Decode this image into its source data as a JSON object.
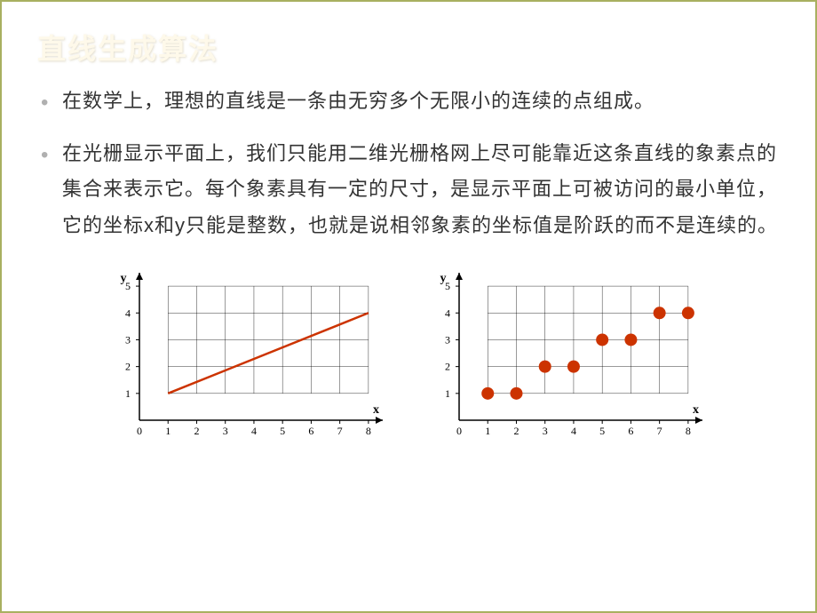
{
  "title": "直线生成算法",
  "bullets": [
    "在数学上，理想的直线是一条由无穷多个无限小的连续的点组成。",
    "在光栅显示平面上，我们只能用二维光栅格网上尽可能靠近这条直线的象素点的集合来表示它。每个象素具有一定的尺寸，是显示平面上可被访问的最小单位，它的坐标x和y只能是整数，也就是说相邻象素的坐标值是阶跃的而不是连续的。"
  ],
  "chart_left": {
    "type": "line",
    "x_label": "x",
    "y_label": "y",
    "x_ticks": [
      0,
      1,
      2,
      3,
      4,
      5,
      6,
      7,
      8
    ],
    "y_ticks": [
      0,
      1,
      2,
      3,
      4,
      5
    ],
    "x_tick_labels": [
      "0",
      "1",
      "2",
      "3",
      "4",
      "5",
      "6",
      "7",
      "8"
    ],
    "y_tick_labels": [
      "",
      "1",
      "2",
      "3",
      "4",
      "5"
    ],
    "xlim": [
      0,
      8.5
    ],
    "ylim": [
      0,
      5.5
    ],
    "grid_xmin": 1,
    "grid_xmax": 8,
    "grid_ymin": 1,
    "grid_ymax": 5,
    "line_points": [
      [
        1,
        1
      ],
      [
        8,
        4
      ]
    ],
    "line_color": "#cc3300",
    "line_width": 2.5,
    "axis_color": "#000000",
    "grid_color": "#000000",
    "grid_width": 0.4,
    "background_color": "#ffffff",
    "axis_label_fontsize": 14,
    "tick_fontsize": 12
  },
  "chart_right": {
    "type": "scatter",
    "x_label": "x",
    "y_label": "y",
    "x_ticks": [
      0,
      1,
      2,
      3,
      4,
      5,
      6,
      7,
      8
    ],
    "y_ticks": [
      0,
      1,
      2,
      3,
      4,
      5
    ],
    "x_tick_labels": [
      "0",
      "1",
      "2",
      "3",
      "4",
      "5",
      "6",
      "7",
      "8"
    ],
    "y_tick_labels": [
      "",
      "1",
      "2",
      "3",
      "4",
      "5"
    ],
    "xlim": [
      0,
      8.5
    ],
    "ylim": [
      0,
      5.5
    ],
    "grid_xmin": 1,
    "grid_xmax": 8,
    "grid_ymin": 1,
    "grid_ymax": 5,
    "points": [
      [
        1,
        1
      ],
      [
        2,
        1
      ],
      [
        3,
        2
      ],
      [
        4,
        2
      ],
      [
        5,
        3
      ],
      [
        6,
        3
      ],
      [
        7,
        4
      ],
      [
        8,
        4
      ]
    ],
    "marker_color": "#cc3300",
    "marker_radius": 7,
    "axis_color": "#000000",
    "grid_color": "#000000",
    "grid_width": 0.4,
    "background_color": "#ffffff",
    "axis_label_fontsize": 14,
    "tick_fontsize": 12
  }
}
